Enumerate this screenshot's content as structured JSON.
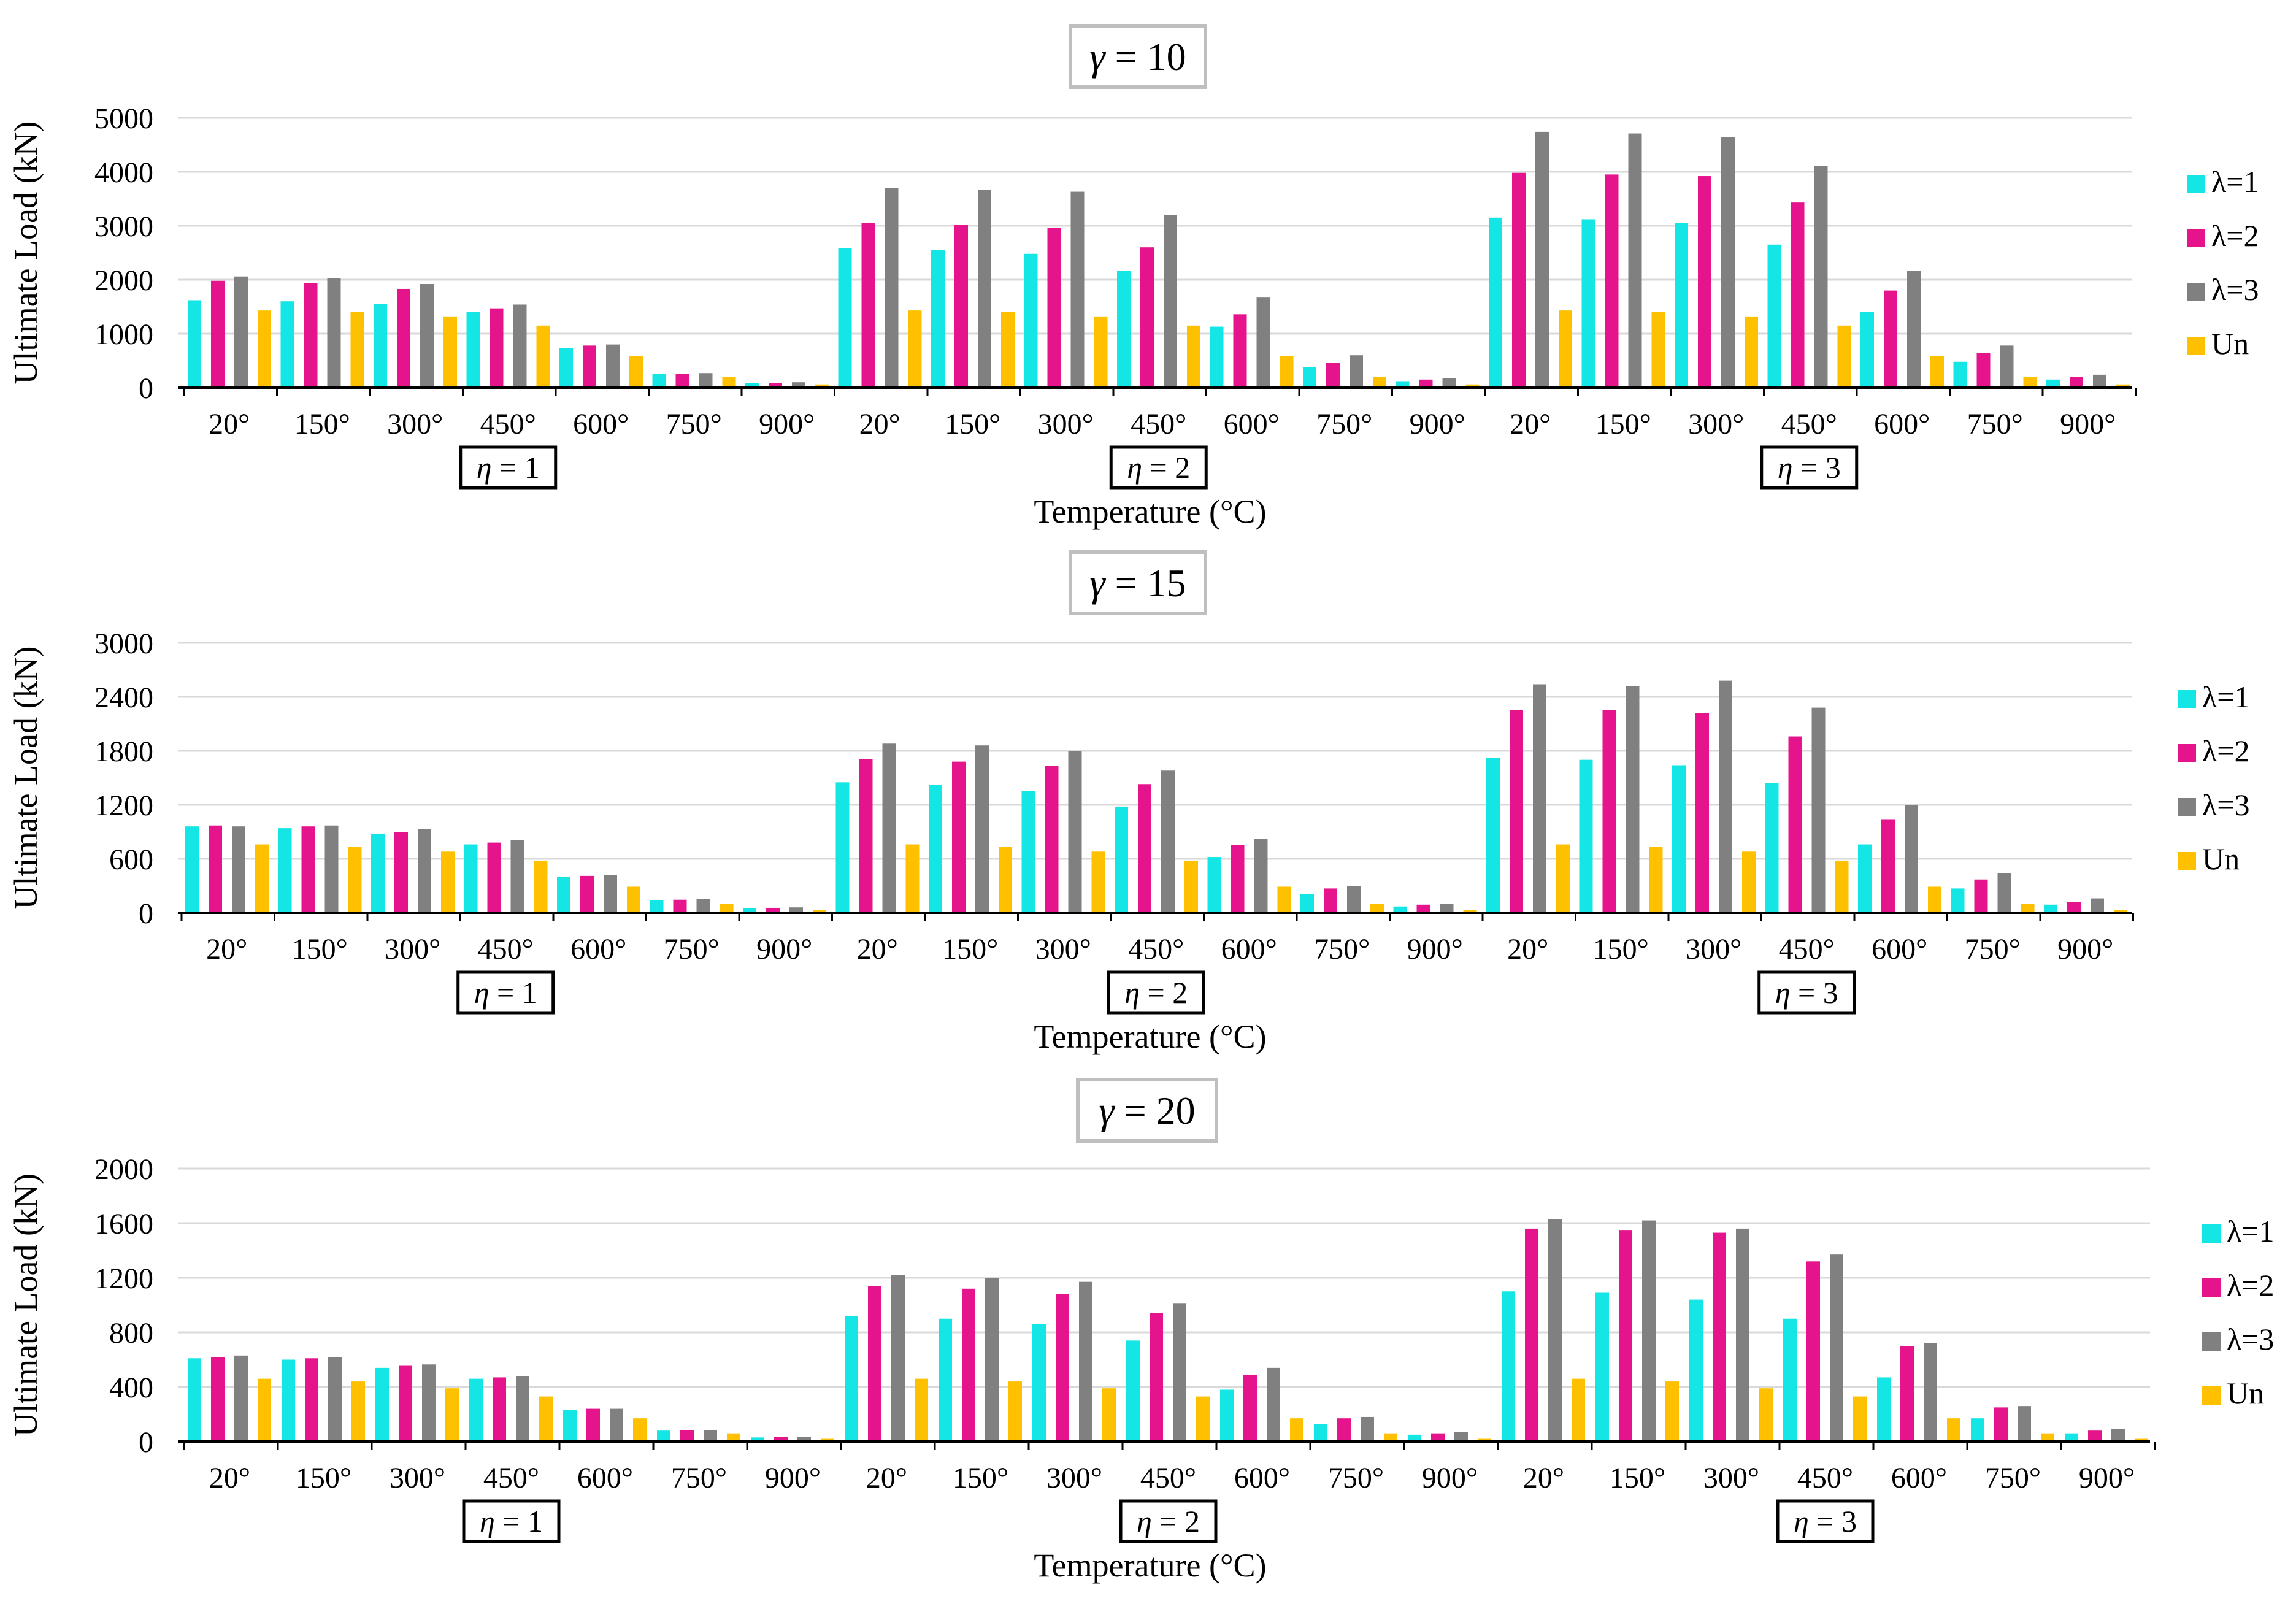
{
  "colors": {
    "λ=1": "#14E6E6",
    "λ=2": "#E6148C",
    "λ=3": "#808080",
    "Un": "#FFC000",
    "grid": "#D9D9D9",
    "axis": "#000000",
    "title_border": "#BFBFBF"
  },
  "chart_data": [
    {
      "type": "bar",
      "title_var": "γ",
      "title_value": "= 10",
      "ylabel": "Ultimate Load (kN)",
      "xlabel": "Temperature (°C)",
      "ylim": [
        0,
        5000
      ],
      "yticks": [
        0,
        1000,
        2000,
        3000,
        4000,
        5000
      ],
      "legend": [
        "λ=1",
        "λ=2",
        "λ=3",
        "Un"
      ],
      "legend_position": "right",
      "categories": [
        "20°",
        "150°",
        "300°",
        "450°",
        "600°",
        "750°",
        "900°",
        "20°",
        "150°",
        "300°",
        "450°",
        "600°",
        "750°",
        "900°",
        "20°",
        "150°",
        "300°",
        "450°",
        "600°",
        "750°",
        "900°"
      ],
      "groups": [
        {
          "var": "η",
          "label": "= 1"
        },
        {
          "var": "η",
          "label": "= 2"
        },
        {
          "var": "η",
          "label": "= 3"
        }
      ],
      "series": [
        {
          "name": "λ=1",
          "values": [
            1620,
            1600,
            1550,
            1400,
            730,
            250,
            80,
            2580,
            2550,
            2480,
            2170,
            1130,
            380,
            120,
            3150,
            3120,
            3050,
            2650,
            1400,
            480,
            150
          ]
        },
        {
          "name": "λ=2",
          "values": [
            1980,
            1940,
            1830,
            1470,
            780,
            260,
            90,
            3050,
            3020,
            2960,
            2600,
            1360,
            460,
            150,
            3980,
            3950,
            3920,
            3430,
            1800,
            640,
            200
          ]
        },
        {
          "name": "λ=3",
          "values": [
            2060,
            2030,
            1920,
            1540,
            800,
            270,
            100,
            3700,
            3660,
            3630,
            3200,
            1680,
            600,
            180,
            4740,
            4710,
            4640,
            4110,
            2170,
            780,
            240
          ]
        },
        {
          "name": "Un",
          "values": [
            1430,
            1400,
            1320,
            1150,
            580,
            200,
            60,
            1430,
            1400,
            1320,
            1150,
            580,
            200,
            60,
            1430,
            1400,
            1320,
            1150,
            580,
            200,
            60
          ]
        }
      ]
    },
    {
      "type": "bar",
      "title_var": "γ",
      "title_value": "= 15",
      "ylabel": "Ultimate Load (kN)",
      "xlabel": "Temperature (°C)",
      "ylim": [
        0,
        3000
      ],
      "yticks": [
        0,
        600,
        1200,
        1800,
        2400,
        3000
      ],
      "legend": [
        "λ=1",
        "λ=2",
        "λ=3",
        "Un"
      ],
      "legend_position": "right",
      "categories": [
        "20°",
        "150°",
        "300°",
        "450°",
        "600°",
        "750°",
        "900°",
        "20°",
        "150°",
        "300°",
        "450°",
        "600°",
        "750°",
        "900°",
        "20°",
        "150°",
        "300°",
        "450°",
        "600°",
        "750°",
        "900°"
      ],
      "groups": [
        {
          "var": "η",
          "label": "= 1"
        },
        {
          "var": "η",
          "label": "= 2"
        },
        {
          "var": "η",
          "label": "= 3"
        }
      ],
      "series": [
        {
          "name": "λ=1",
          "values": [
            960,
            940,
            880,
            760,
            400,
            140,
            50,
            1450,
            1420,
            1350,
            1180,
            620,
            210,
            70,
            1720,
            1700,
            1640,
            1440,
            760,
            270,
            90
          ]
        },
        {
          "name": "λ=2",
          "values": [
            970,
            960,
            900,
            780,
            410,
            145,
            55,
            1710,
            1680,
            1630,
            1430,
            750,
            270,
            90,
            2250,
            2250,
            2220,
            1960,
            1040,
            370,
            120
          ]
        },
        {
          "name": "λ=3",
          "values": [
            960,
            970,
            930,
            810,
            420,
            150,
            60,
            1880,
            1860,
            1800,
            1580,
            820,
            300,
            100,
            2540,
            2520,
            2580,
            2280,
            1200,
            440,
            160
          ]
        },
        {
          "name": "Un",
          "values": [
            760,
            730,
            680,
            580,
            290,
            100,
            30,
            760,
            730,
            680,
            580,
            290,
            100,
            30,
            760,
            730,
            680,
            580,
            290,
            100,
            30
          ]
        }
      ]
    },
    {
      "type": "bar",
      "title_var": "γ",
      "title_value": "= 20",
      "ylabel": "Ultimate Load (kN)",
      "xlabel": "Temperature (°C)",
      "ylim": [
        0,
        2000
      ],
      "yticks": [
        0,
        400,
        800,
        1200,
        1600,
        2000
      ],
      "legend": [
        "λ=1",
        "λ=2",
        "λ=3",
        "Un"
      ],
      "legend_position": "right",
      "categories": [
        "20°",
        "150°",
        "300°",
        "450°",
        "600°",
        "750°",
        "900°",
        "20°",
        "150°",
        "300°",
        "450°",
        "600°",
        "750°",
        "900°",
        "20°",
        "150°",
        "300°",
        "450°",
        "600°",
        "750°",
        "900°"
      ],
      "groups": [
        {
          "var": "η",
          "label": "= 1"
        },
        {
          "var": "η",
          "label": "= 2"
        },
        {
          "var": "η",
          "label": "= 3"
        }
      ],
      "series": [
        {
          "name": "λ=1",
          "values": [
            610,
            600,
            540,
            460,
            230,
            80,
            30,
            920,
            900,
            860,
            740,
            380,
            130,
            50,
            1100,
            1090,
            1040,
            900,
            470,
            170,
            60
          ]
        },
        {
          "name": "λ=2",
          "values": [
            620,
            610,
            555,
            470,
            240,
            85,
            35,
            1140,
            1120,
            1080,
            940,
            490,
            170,
            60,
            1560,
            1550,
            1530,
            1320,
            700,
            250,
            80
          ]
        },
        {
          "name": "λ=3",
          "values": [
            630,
            620,
            565,
            480,
            240,
            85,
            35,
            1220,
            1200,
            1170,
            1010,
            540,
            180,
            70,
            1630,
            1620,
            1560,
            1370,
            720,
            260,
            90
          ]
        },
        {
          "name": "Un",
          "values": [
            460,
            440,
            390,
            330,
            170,
            60,
            20,
            460,
            440,
            390,
            330,
            170,
            60,
            20,
            460,
            440,
            390,
            330,
            170,
            60,
            20
          ]
        }
      ]
    }
  ]
}
